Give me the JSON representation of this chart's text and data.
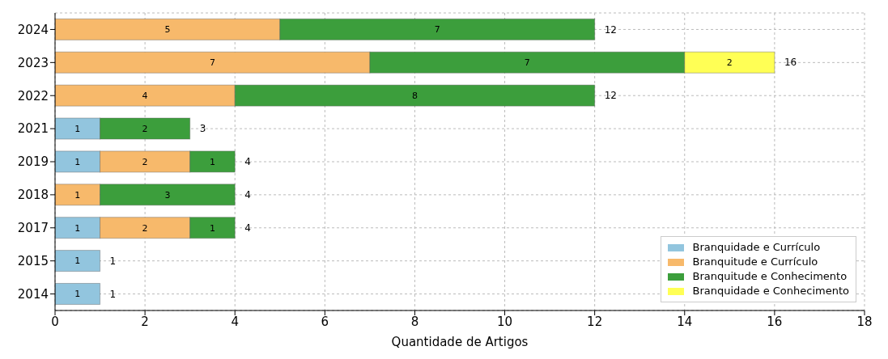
{
  "chart_data": {
    "type": "bar",
    "orientation": "horizontal",
    "stacked": true,
    "xlabel": "Quantidade de Artigos",
    "categories": [
      "2024",
      "2023",
      "2022",
      "2021",
      "2019",
      "2018",
      "2017",
      "2015",
      "2014"
    ],
    "series": [
      {
        "name": "Branquidade e Currículo",
        "color": "#92c5de",
        "values": [
          null,
          null,
          null,
          1,
          1,
          null,
          1,
          1,
          1
        ]
      },
      {
        "name": "Branquitude e Currículo",
        "color": "#f7b96b",
        "values": [
          5,
          7,
          4,
          null,
          2,
          1,
          2,
          null,
          null
        ]
      },
      {
        "name": "Branquitude e Conhecimento",
        "color": "#3c9e3c",
        "values": [
          7,
          7,
          8,
          2,
          1,
          3,
          1,
          null,
          null
        ]
      },
      {
        "name": "Branquidade e Conhecimento",
        "color": "#ffff55",
        "values": [
          null,
          2,
          null,
          null,
          null,
          null,
          null,
          null,
          null
        ]
      }
    ],
    "totals": [
      "12",
      "16",
      "12",
      "3",
      "4",
      "4",
      "4",
      "1",
      "1"
    ],
    "data_labels": true,
    "xlim": [
      0,
      18
    ],
    "xticks": [
      0,
      2,
      4,
      6,
      8,
      10,
      12,
      14,
      16,
      18
    ],
    "grid": true,
    "legend": "bottom right"
  }
}
